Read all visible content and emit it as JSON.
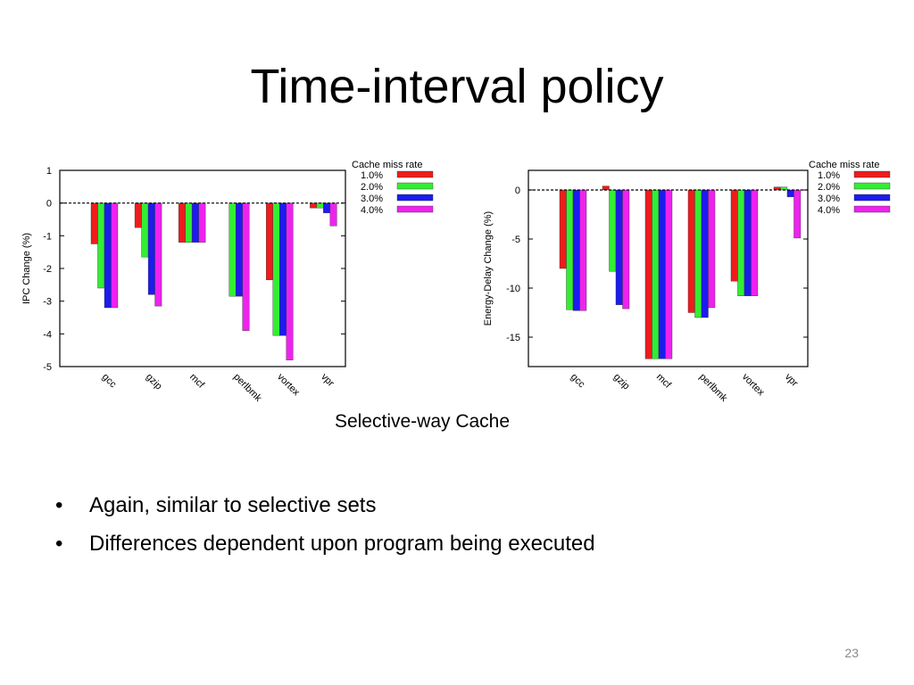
{
  "slide": {
    "title": "Time-interval policy",
    "caption": "Selective-way Cache",
    "bullets": [
      "Again, similar to selective sets",
      "Differences dependent upon program being executed"
    ],
    "page_number": "23"
  },
  "chart_data": [
    {
      "type": "bar",
      "title": "",
      "xlabel": "",
      "ylabel": "IPC Change (%)",
      "ylim": [
        -5,
        1
      ],
      "yticks": [
        1,
        0,
        -1,
        -2,
        -3,
        -4,
        -5
      ],
      "categories": [
        "gcc",
        "gzip",
        "mcf",
        "perlbmk",
        "vortex",
        "vpr"
      ],
      "legend_title": "Cache miss rate",
      "legend_position": "top-right outside",
      "zero_line": "dashed",
      "grid": false,
      "series": [
        {
          "name": "1.0%",
          "color": "#ee1c1c",
          "values": [
            -1.25,
            -0.75,
            -1.2,
            0,
            -2.35,
            -0.15
          ]
        },
        {
          "name": "2.0%",
          "color": "#33ee33",
          "values": [
            -2.6,
            -1.65,
            -1.2,
            -2.85,
            -4.05,
            -0.15
          ]
        },
        {
          "name": "3.0%",
          "color": "#1c1cee",
          "values": [
            -3.2,
            -2.8,
            -1.2,
            -2.85,
            -4.05,
            -0.3
          ]
        },
        {
          "name": "4.0%",
          "color": "#ee22ee",
          "values": [
            -3.2,
            -3.15,
            -1.2,
            -3.9,
            -4.8,
            -0.7
          ]
        }
      ]
    },
    {
      "type": "bar",
      "title": "",
      "xlabel": "",
      "ylabel": "Energy-Delay Change (%)",
      "ylim": [
        -18,
        2
      ],
      "yticks": [
        0,
        -5,
        -10,
        -15
      ],
      "categories": [
        "gcc",
        "gzip",
        "mcf",
        "perlbmk",
        "vortex",
        "vpr"
      ],
      "legend_title": "Cache miss rate",
      "legend_position": "top-right outside",
      "zero_line": "dashed",
      "grid": false,
      "series": [
        {
          "name": "1.0%",
          "color": "#ee1c1c",
          "values": [
            -8,
            0.4,
            -17.2,
            -12.5,
            -9.3,
            0.3
          ]
        },
        {
          "name": "2.0%",
          "color": "#33ee33",
          "values": [
            -12.2,
            -8.3,
            -17.2,
            -13,
            -10.8,
            0.3
          ]
        },
        {
          "name": "3.0%",
          "color": "#1c1cee",
          "values": [
            -12.3,
            -11.7,
            -17.2,
            -13,
            -10.8,
            -0.7
          ]
        },
        {
          "name": "4.0%",
          "color": "#ee22ee",
          "values": [
            -12.3,
            -12.1,
            -17.2,
            -12,
            -10.8,
            -4.9
          ]
        }
      ]
    }
  ]
}
